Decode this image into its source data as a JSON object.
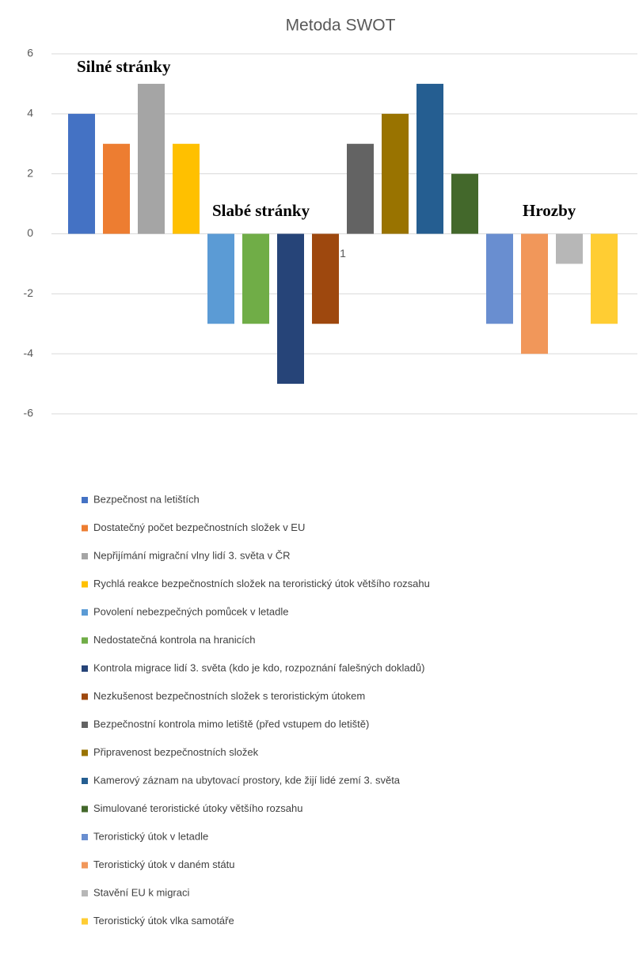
{
  "chart_data": {
    "type": "bar",
    "title": "Metoda SWOT",
    "categories": [
      "1"
    ],
    "ylim": [
      -6,
      6
    ],
    "yticks": [
      6,
      4,
      2,
      0,
      -2,
      -4,
      -6
    ],
    "grid": true,
    "annotations": [
      "Silné stránky",
      "Slabé stránky",
      "Hrozby"
    ],
    "series": [
      {
        "name": "Bezpečnost na letištích",
        "color": "#4472c4",
        "values": [
          4
        ]
      },
      {
        "name": "Dostatečný počet bezpečnostních složek v EU",
        "color": "#ed7d31",
        "values": [
          3
        ]
      },
      {
        "name": "Nepřijímání migrační vlny lidí 3. světa v ČR",
        "color": "#a5a5a5",
        "values": [
          5
        ]
      },
      {
        "name": "Rychlá reakce bezpečnostních složek na teroristický útok většího rozsahu",
        "color": "#ffc000",
        "values": [
          3
        ]
      },
      {
        "name": "Povolení nebezpečných pomůcek v letadle",
        "color": "#5b9bd5",
        "values": [
          -3
        ]
      },
      {
        "name": "Nedostatečná kontrola na hranicích",
        "color": "#70ad47",
        "values": [
          -3
        ]
      },
      {
        "name": "Kontrola migrace lidí 3. světa (kdo je kdo, rozpoznání falešných dokladů)",
        "color": "#264478",
        "values": [
          -5
        ]
      },
      {
        "name": "Nezkušenost bezpečnostních složek s teroristickým útokem",
        "color": "#9e480e",
        "values": [
          -3
        ]
      },
      {
        "name": "Bezpečnostní kontrola mimo letiště (před vstupem do letiště)",
        "color": "#636363",
        "values": [
          3
        ]
      },
      {
        "name": "Připravenost bezpečnostních složek",
        "color": "#997300",
        "values": [
          4
        ]
      },
      {
        "name": "Kamerový záznam na ubytovací prostory, kde žijí lidé zemí 3. světa",
        "color": "#255e91",
        "values": [
          5
        ]
      },
      {
        "name": "Simulované teroristické útoky většího rozsahu",
        "color": "#43682b",
        "values": [
          2
        ]
      },
      {
        "name": "Teroristický útok v letadle",
        "color": "#698ed0",
        "values": [
          -3
        ]
      },
      {
        "name": "Teroristický útok v daném státu",
        "color": "#f1975a",
        "values": [
          -4
        ]
      },
      {
        "name": "Stavění EU k migraci",
        "color": "#b7b7b7",
        "values": [
          -1
        ]
      },
      {
        "name": "Teroristický útok vlka samotáře",
        "color": "#ffcd33",
        "values": [
          -3
        ]
      }
    ]
  }
}
